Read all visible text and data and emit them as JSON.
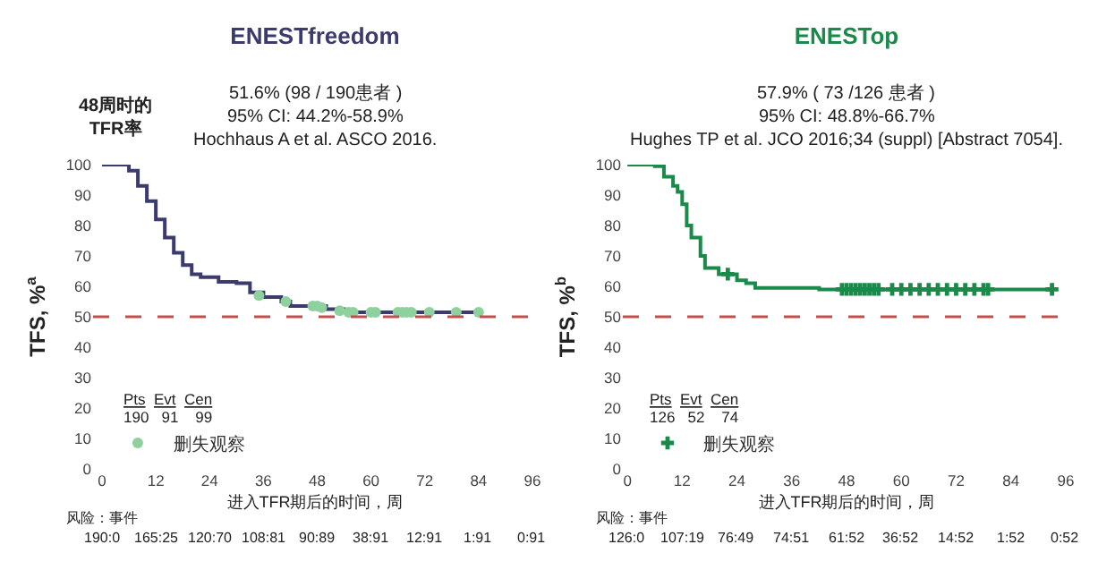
{
  "chart_data": [
    {
      "type": "step",
      "title": "ENESTfreedom",
      "subtitle": "51.6% (98 / 190患者 )\n95% CI: 44.2%-58.9%",
      "xlabel": "进入TFR期后的时间，周",
      "ylabel": "TFS, %$^{a}$",
      "annotations": [
        "Hochhaus A et al. ASCO 2016.",
        "Pts  Evt  Cen",
        "190   91    99",
        "风险：事件",
        "190:0",
        "165:25",
        "120:70",
        "108:81",
        "90:89",
        "38:91",
        "12:91",
        "1:91",
        "0:91",
        "48周时的\nTFR率"
      ],
      "xlim": [
        -2,
        97
      ],
      "xticks": [
        0,
        12,
        24,
        36,
        48,
        60,
        72,
        84,
        96
      ],
      "ylim": [
        0,
        100
      ],
      "yticks": [
        0,
        10,
        20,
        30,
        40,
        50,
        60,
        70,
        80,
        90,
        100
      ],
      "grid": false,
      "legend": "bottom left",
      "ref_lines": [
        {
          "axis": "y",
          "value": 50,
          "color": "#c0504d",
          "line_style": "dashed"
        }
      ],
      "series": [
        {
          "color": "#3b3b6e",
          "line_style": "solid",
          "x": [
            0,
            4,
            6,
            8,
            10,
            12,
            14,
            16,
            18,
            20,
            22,
            26,
            30,
            33,
            36,
            40,
            42,
            48,
            50,
            54,
            60,
            84
          ],
          "values": [
            100,
            100,
            98,
            93,
            88,
            82,
            76,
            71,
            67,
            64,
            63,
            61.5,
            61,
            58,
            56.5,
            55,
            53.5,
            53.5,
            52.5,
            51.5,
            51.5,
            51.5
          ]
        },
        {
          "type": "scatter",
          "name": "删失观察",
          "color": "#8fd19e",
          "marker": "circle",
          "x": [
            35,
            41,
            47,
            48,
            49,
            53,
            55,
            56,
            60,
            61,
            66,
            67,
            68,
            69,
            73,
            79,
            84
          ],
          "values": [
            57,
            55,
            53.5,
            53.5,
            53,
            52,
            51.5,
            51.5,
            51.5,
            51.5,
            51.5,
            51.5,
            51.5,
            51.5,
            51.5,
            51.5,
            51.5
          ]
        }
      ]
    },
    {
      "type": "step",
      "title": "ENESTop",
      "subtitle": "57.9% ( 73 /126 患者 )\n95% CI: 48.8%-66.7%",
      "xlabel": "进入TFR期后的时间，周",
      "ylabel": "TFS, %$^{b}$",
      "annotations": [
        "Hughes TP et al. JCO 2016;34 (suppl) [Abstract 7054].",
        "Pts  Evt  Cen",
        "126   52    74",
        "风险：事件",
        "126:0",
        "107:19",
        "76:49",
        "74:51",
        "61:52",
        "36:52",
        "14:52",
        "1:52",
        "0:52"
      ],
      "xlim": [
        -1,
        97
      ],
      "xticks": [
        0,
        12,
        24,
        36,
        48,
        60,
        72,
        84,
        96
      ],
      "ylim": [
        0,
        100
      ],
      "yticks": [
        0,
        10,
        20,
        30,
        40,
        50,
        60,
        70,
        80,
        90,
        100
      ],
      "grid": false,
      "legend": "bottom left",
      "ref_lines": [
        {
          "axis": "y",
          "value": 50,
          "color": "#c0504d",
          "line_style": "dashed"
        }
      ],
      "series": [
        {
          "color": "#1a8a4a",
          "line_style": "solid",
          "x": [
            0,
            6,
            8,
            10,
            11,
            12,
            13,
            14,
            16,
            17,
            20,
            24,
            26,
            28,
            40,
            42,
            93
          ],
          "values": [
            100,
            99.5,
            96,
            93,
            91,
            87,
            80,
            76,
            70,
            66,
            64,
            62,
            61,
            59.5,
            59.5,
            59,
            59
          ]
        },
        {
          "type": "scatter",
          "name": "删失观察",
          "color": "#1a8a4a",
          "marker": "cross",
          "x": [
            22,
            47,
            48,
            49,
            50,
            51,
            52,
            53,
            54,
            55,
            58,
            60,
            62,
            64,
            66,
            68,
            70,
            72,
            74,
            76,
            78,
            79,
            93
          ],
          "values": [
            64,
            59,
            59,
            59,
            59,
            59,
            59,
            59,
            59,
            59,
            59,
            59,
            59,
            59,
            59,
            59,
            59,
            59,
            59,
            59,
            59,
            59,
            59
          ]
        }
      ]
    }
  ]
}
